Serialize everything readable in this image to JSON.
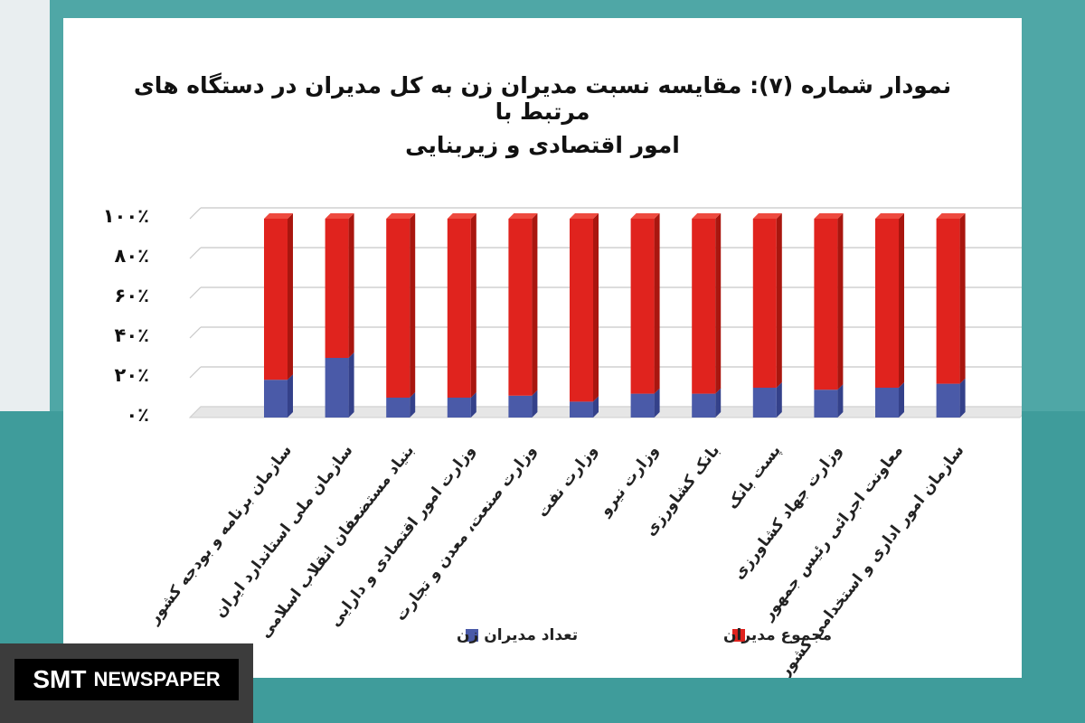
{
  "chart_data": {
    "type": "bar",
    "stacked": true,
    "percent": true,
    "title": "نمودار شماره (۷): مقایسه نسبت مدیران زن به کل مدیران در دستگاه های مرتبط با",
    "subtitle": "امور اقتصادی و زیربنایی",
    "yticks": [
      "۰٪",
      "۲۰٪",
      "۴۰٪",
      "۶۰٪",
      "۸۰٪",
      "۱۰۰٪"
    ],
    "ylim": [
      0,
      100
    ],
    "categories": [
      "سازمان برنامه و بودجه کشور",
      "سازمان ملی استاندارد ایران",
      "بنیاد مستضعفان انقلاب اسلامی",
      "وزارت امور اقتصادی و دارایی",
      "وزارت صنعت، معدن و تجارت",
      "وزارت نفت",
      "وزارت نیرو",
      "بانک کشاورزی",
      "پست بانک",
      "وزارت جهاد کشاورزی",
      "معاونت اجرائی رئیس جمهور",
      "سازمان امور اداری و استخدامی کشور"
    ],
    "series": [
      {
        "name": "تعداد مدیران زن",
        "color": "#4a5aa8",
        "values": [
          19,
          30,
          10,
          10,
          11,
          8,
          12,
          12,
          15,
          14,
          15,
          17
        ]
      },
      {
        "name": "مجموع مدیران",
        "color": "#e0231e",
        "values": [
          81,
          70,
          90,
          90,
          89,
          92,
          88,
          88,
          85,
          86,
          85,
          83
        ]
      }
    ],
    "legend_position": "bottom",
    "grid": true
  },
  "watermark": {
    "brand": "SMT",
    "word": "NEWSPAPER"
  }
}
